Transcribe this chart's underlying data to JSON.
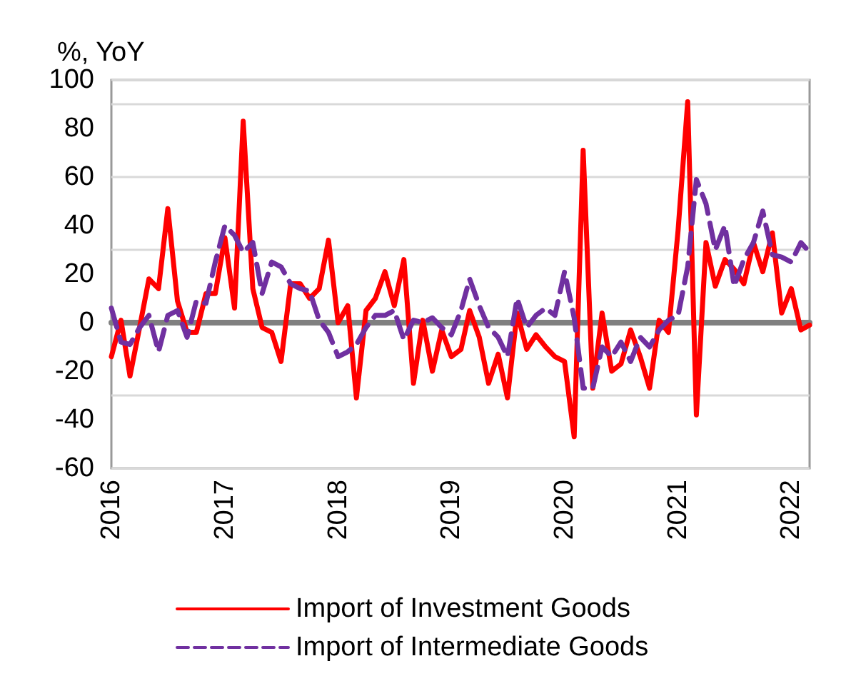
{
  "chart_data": {
    "type": "line",
    "ylabel": "%, YoY",
    "x": [
      "2016-01",
      "2016-02",
      "2016-03",
      "2016-04",
      "2016-05",
      "2016-06",
      "2016-07",
      "2016-08",
      "2016-09",
      "2016-10",
      "2016-11",
      "2016-12",
      "2017-01",
      "2017-02",
      "2017-03",
      "2017-04",
      "2017-05",
      "2017-06",
      "2017-07",
      "2017-08",
      "2017-09",
      "2017-10",
      "2017-11",
      "2017-12",
      "2018-01",
      "2018-02",
      "2018-03",
      "2018-04",
      "2018-05",
      "2018-06",
      "2018-07",
      "2018-08",
      "2018-09",
      "2018-10",
      "2018-11",
      "2018-12",
      "2019-01",
      "2019-02",
      "2019-03",
      "2019-04",
      "2019-05",
      "2019-06",
      "2019-07",
      "2019-08",
      "2019-09",
      "2019-10",
      "2019-11",
      "2019-12",
      "2020-01",
      "2020-02",
      "2020-03",
      "2020-04",
      "2020-05",
      "2020-06",
      "2020-07",
      "2020-08",
      "2020-09",
      "2020-10",
      "2020-11",
      "2020-12",
      "2021-01",
      "2021-02",
      "2021-03",
      "2021-04",
      "2021-05",
      "2021-06",
      "2021-07",
      "2021-08",
      "2021-09",
      "2021-10",
      "2021-11",
      "2021-12",
      "2022-01",
      "2022-02",
      "2022-03"
    ],
    "series": [
      {
        "name": "Import of Investment Goods",
        "color": "#ff0000",
        "line_style": "solid",
        "values": [
          -14,
          1,
          -22,
          -2,
          18,
          14,
          47,
          9,
          -4,
          -4,
          12,
          12,
          35,
          6,
          83,
          14,
          -2,
          -4,
          -16,
          16,
          16,
          10,
          14,
          34,
          0,
          7,
          -31,
          5,
          10,
          21,
          7,
          26,
          -25,
          1,
          -20,
          -3,
          -14,
          -11,
          5,
          -6,
          -25,
          -13,
          -31,
          4,
          -11,
          -5,
          -10,
          -14,
          -16,
          -47,
          71,
          -27,
          4,
          -20,
          -17,
          -3,
          -14,
          -27,
          1,
          -4,
          38,
          91,
          -38,
          33,
          15,
          26,
          22,
          16,
          33,
          21,
          37,
          4,
          14,
          -3,
          -1
        ]
      },
      {
        "name": "Import of Intermediate Goods",
        "color": "#7030a0",
        "line_style": "dashed",
        "values": [
          6,
          -8,
          -9,
          -2,
          3,
          -12,
          3,
          5,
          -6,
          9,
          8,
          25,
          40,
          36,
          29,
          33,
          12,
          25,
          23,
          16,
          14,
          13,
          1,
          -4,
          -14,
          -12,
          -9,
          -2,
          3,
          3,
          5,
          -7,
          1,
          0,
          2,
          -2,
          -5,
          5,
          18,
          7,
          -2,
          -6,
          -14,
          10,
          -2,
          3,
          6,
          3,
          21,
          2,
          -27,
          -27,
          -10,
          -14,
          -8,
          -16,
          -6,
          -10,
          -3,
          1,
          3,
          23,
          59,
          49,
          30,
          40,
          15,
          26,
          33,
          46,
          28,
          27,
          25,
          33,
          29
        ]
      }
    ],
    "xlim": [
      "2016-01",
      "2022-03"
    ],
    "xticks": [
      "2016",
      "2017",
      "2018",
      "2019",
      "2020",
      "2021",
      "2022"
    ],
    "ylim": [
      -60,
      100
    ],
    "yticks": [
      -60,
      -40,
      -20,
      0,
      20,
      40,
      60,
      80,
      100
    ],
    "grid": "y",
    "legend": "bottom",
    "marker": "none"
  }
}
